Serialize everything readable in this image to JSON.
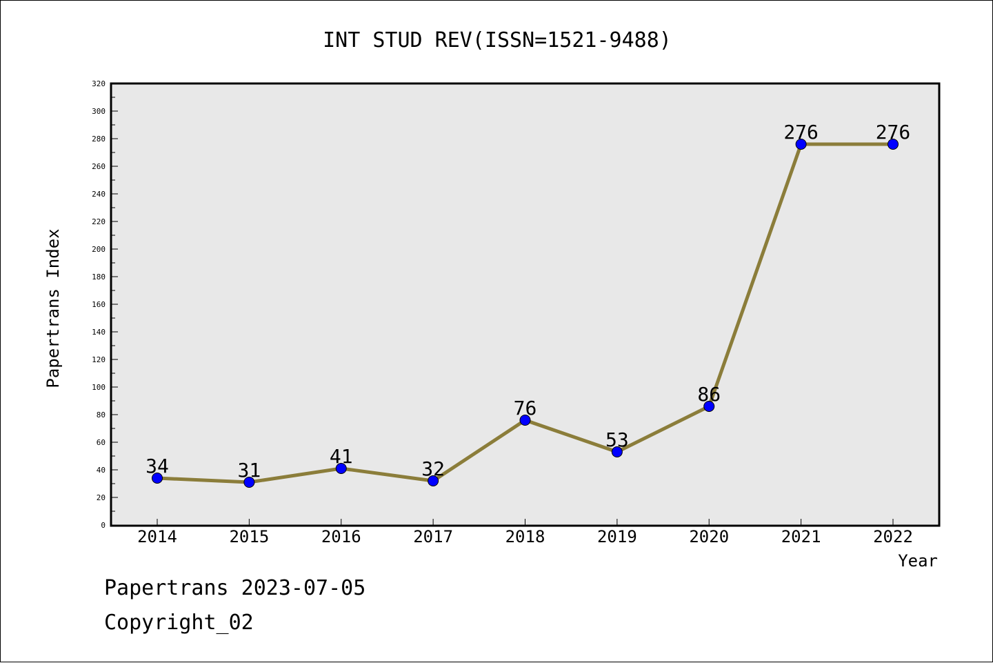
{
  "chart_data": {
    "type": "line",
    "title": "INT STUD REV(ISSN=1521-9488)",
    "xlabel": "Year",
    "ylabel": "Papertrans Index",
    "categories": [
      "2014",
      "2015",
      "2016",
      "2017",
      "2018",
      "2019",
      "2020",
      "2021",
      "2022"
    ],
    "values": [
      34,
      31,
      41,
      32,
      76,
      53,
      86,
      276,
      276
    ],
    "ylim": [
      0,
      320
    ],
    "ytick_step": 20,
    "line_color": "#8b7d3a",
    "marker_color": "#0000ff",
    "plot_background": "#e8e8e8",
    "grid": false,
    "data_labels": true
  },
  "footer": {
    "line1": "Papertrans 2023-07-05",
    "line2": "Copyright_02"
  }
}
